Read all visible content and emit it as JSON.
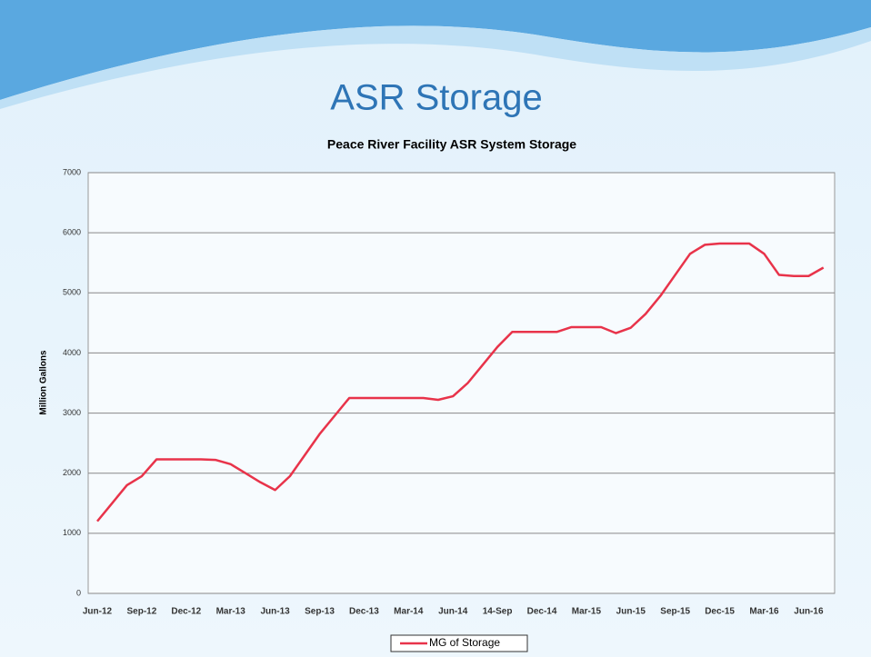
{
  "page_title": "ASR Storage",
  "chart_data": {
    "type": "line",
    "title": "Peace River Facility ASR System Storage",
    "y_label": "Million Gallons",
    "categories": [
      "Jun-12",
      null,
      null,
      "Sep-12",
      null,
      null,
      "Dec-12",
      null,
      null,
      "Mar-13",
      null,
      null,
      "Jun-13",
      null,
      null,
      "Sep-13",
      null,
      null,
      "Dec-13",
      null,
      null,
      "Mar-14",
      null,
      null,
      "Jun-14",
      null,
      null,
      "14-Sep",
      null,
      null,
      "Dec-14",
      null,
      null,
      "Mar-15",
      null,
      null,
      "Jun-15",
      null,
      null,
      "Sep-15",
      null,
      null,
      "Dec-15",
      null,
      null,
      "Mar-16",
      null,
      null,
      "Jun-16",
      null
    ],
    "series": [
      {
        "name": "MG of Storage",
        "color": "#e8334a",
        "values": [
          1200,
          1500,
          1800,
          1950,
          2230,
          2230,
          2230,
          2230,
          2220,
          2150,
          2000,
          1850,
          1720,
          1950,
          2300,
          2650,
          2950,
          3250,
          3250,
          3250,
          3250,
          3250,
          3250,
          3220,
          3280,
          3500,
          3800,
          4100,
          4350,
          4350,
          4350,
          4350,
          4430,
          4430,
          4430,
          4330,
          4420,
          4650,
          4950,
          5300,
          5650,
          5800,
          5820,
          5820,
          5820,
          5650,
          5300,
          5280,
          5280,
          5420
        ]
      }
    ],
    "ylim": [
      0,
      7000
    ],
    "yticks": [
      0,
      1000,
      2000,
      3000,
      4000,
      5000,
      6000,
      7000
    ],
    "grid": true,
    "legend": "bottom"
  }
}
